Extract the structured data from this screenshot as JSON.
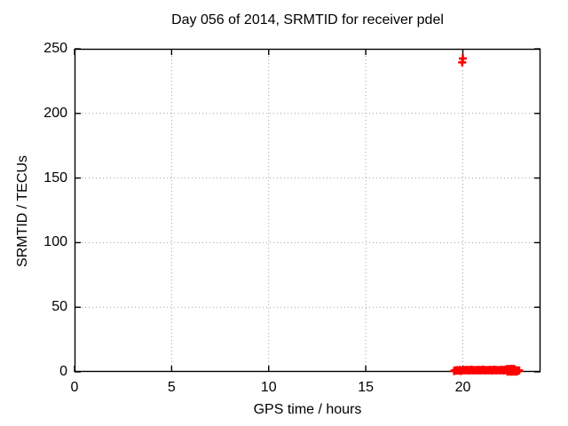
{
  "figure": {
    "background": "#ffffff",
    "text_color": "#000000"
  },
  "chart_data": {
    "type": "scatter",
    "title": "Day 056 of 2014, SRMTID for receiver pdel",
    "xlabel": "GPS time / hours",
    "ylabel": "SRMTID / TECUs",
    "xlim": [
      0,
      24
    ],
    "ylim": [
      0,
      250
    ],
    "xticks": [
      0,
      5,
      10,
      15,
      20
    ],
    "yticks": [
      0,
      50,
      100,
      150,
      200,
      250
    ],
    "grid": true,
    "grid_style": "dotted",
    "grid_color": "#a0a0a0",
    "border_color": "#000000",
    "legend": "none",
    "marker": {
      "shape": "plus",
      "color": "#ff0000",
      "half_size": 4.5,
      "stroke_width": 2.6
    },
    "series": [
      {
        "name": "SRMTID",
        "points": [
          [
            20.0,
            242.5
          ],
          [
            19.97,
            239.5
          ],
          [
            19.55,
            0.6
          ],
          [
            19.6,
            1.2
          ],
          [
            19.65,
            0.9
          ],
          [
            19.7,
            1.4
          ],
          [
            19.75,
            0.8
          ],
          [
            19.8,
            1.1
          ],
          [
            19.85,
            1.5
          ],
          [
            19.9,
            0.7
          ],
          [
            19.95,
            1.0
          ],
          [
            20.05,
            1.4
          ],
          [
            20.1,
            1.1
          ],
          [
            20.15,
            1.6
          ],
          [
            20.2,
            1.2
          ],
          [
            20.25,
            1.5
          ],
          [
            20.3,
            1.0
          ],
          [
            20.35,
            1.3
          ],
          [
            20.4,
            1.7
          ],
          [
            20.45,
            1.2
          ],
          [
            20.5,
            1.5
          ],
          [
            20.55,
            1.1
          ],
          [
            20.6,
            1.4
          ],
          [
            20.65,
            1.4
          ],
          [
            20.7,
            1.1
          ],
          [
            20.75,
            1.6
          ],
          [
            20.8,
            1.2
          ],
          [
            20.85,
            1.5
          ],
          [
            20.9,
            1.0
          ],
          [
            20.95,
            1.3
          ],
          [
            21.0,
            1.7
          ],
          [
            21.05,
            1.2
          ],
          [
            21.1,
            1.5
          ],
          [
            21.15,
            1.1
          ],
          [
            21.2,
            1.4
          ],
          [
            21.25,
            1.4
          ],
          [
            21.3,
            1.1
          ],
          [
            21.35,
            1.6
          ],
          [
            21.4,
            1.2
          ],
          [
            21.45,
            1.5
          ],
          [
            21.5,
            1.0
          ],
          [
            21.55,
            1.3
          ],
          [
            21.6,
            1.7
          ],
          [
            21.65,
            1.2
          ],
          [
            21.7,
            1.5
          ],
          [
            21.75,
            1.1
          ],
          [
            21.8,
            1.4
          ],
          [
            21.85,
            1.4
          ],
          [
            21.9,
            1.1
          ],
          [
            21.95,
            1.6
          ],
          [
            22.0,
            1.2
          ],
          [
            22.05,
            1.5
          ],
          [
            22.1,
            1.0
          ],
          [
            22.15,
            1.3
          ],
          [
            22.2,
            1.7
          ],
          [
            22.25,
            1.2
          ],
          [
            22.3,
            1.5
          ],
          [
            22.35,
            1.1
          ],
          [
            22.4,
            1.4
          ],
          [
            22.45,
            1.4
          ],
          [
            22.5,
            1.1
          ],
          [
            22.55,
            1.6
          ],
          [
            22.6,
            1.2
          ],
          [
            22.65,
            1.5
          ],
          [
            22.25,
            2.0
          ],
          [
            22.3,
            2.3
          ],
          [
            22.35,
            1.9
          ],
          [
            22.4,
            2.2
          ],
          [
            22.45,
            2.0
          ],
          [
            22.5,
            2.4
          ],
          [
            22.55,
            2.1
          ],
          [
            22.6,
            1.8
          ],
          [
            22.65,
            2.2
          ],
          [
            22.7,
            1.0
          ],
          [
            22.75,
            1.3
          ],
          [
            22.8,
            0.9
          ],
          [
            22.85,
            1.2
          ],
          [
            22.9,
            1.0
          ],
          [
            22.3,
            0.2
          ],
          [
            22.4,
            0.3
          ],
          [
            22.5,
            0.1
          ],
          [
            22.6,
            0.3
          ],
          [
            22.7,
            0.2
          ],
          [
            22.8,
            0.3
          ]
        ]
      }
    ]
  }
}
